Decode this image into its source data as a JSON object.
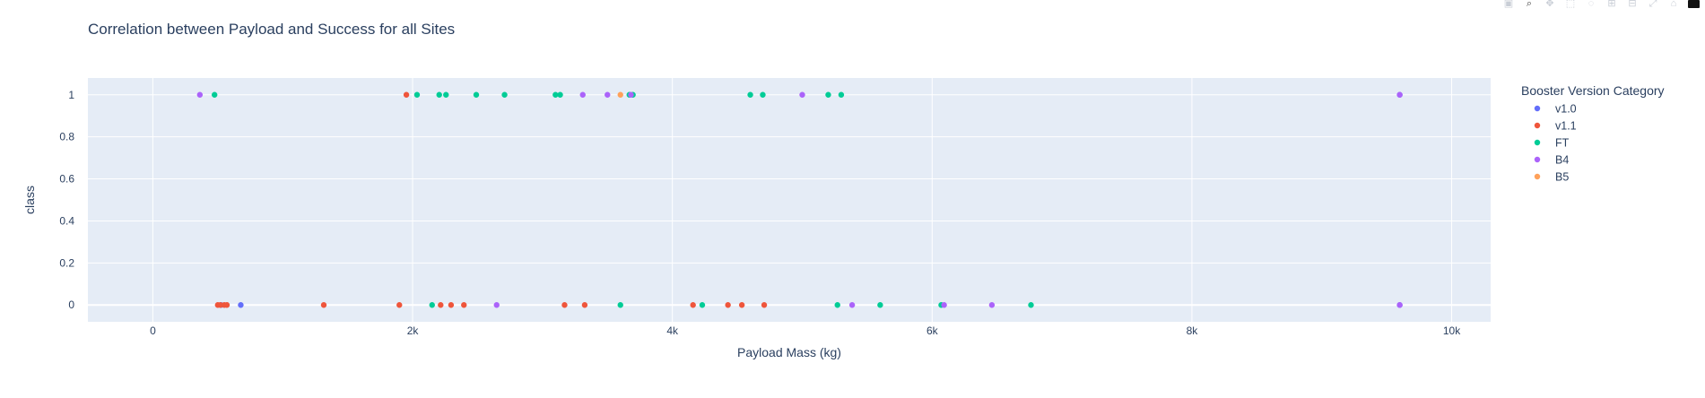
{
  "chart_data": {
    "type": "scatter",
    "title": "Correlation between Payload and Success for all Sites",
    "xlabel": "Payload Mass (kg)",
    "ylabel": "class",
    "xlim": [
      -500,
      10300
    ],
    "ylim": [
      -0.08,
      1.08
    ],
    "x_ticks": [
      0,
      2000,
      4000,
      6000,
      8000,
      10000
    ],
    "x_tick_labels": [
      "0",
      "2k",
      "4k",
      "6k",
      "8k",
      "10k"
    ],
    "y_ticks": [
      0,
      0.2,
      0.4,
      0.6,
      0.8,
      1
    ],
    "y_tick_labels": [
      "0",
      "0.2",
      "0.4",
      "0.6",
      "0.8",
      "1"
    ],
    "grid": true,
    "legend_title": "Booster Version Category",
    "legend_position": "right",
    "series": [
      {
        "name": "v1.0",
        "color": "#636efa",
        "points": [
          [
            525,
            0
          ],
          [
            677,
            0
          ],
          [
            9600,
            1
          ],
          [
            9600,
            0
          ]
        ]
      },
      {
        "name": "v1.1",
        "color": "#ef553b",
        "points": [
          [
            500,
            0
          ],
          [
            520,
            0
          ],
          [
            550,
            0
          ],
          [
            570,
            0
          ],
          [
            1316,
            0
          ],
          [
            1898,
            0
          ],
          [
            1952,
            1
          ],
          [
            2216,
            0
          ],
          [
            2296,
            0
          ],
          [
            2395,
            0
          ],
          [
            3170,
            0
          ],
          [
            3325,
            0
          ],
          [
            4159,
            0
          ],
          [
            4428,
            0
          ],
          [
            4535,
            0
          ],
          [
            4707,
            0
          ]
        ]
      },
      {
        "name": "FT",
        "color": "#00cc96",
        "points": [
          [
            475,
            1
          ],
          [
            2034,
            1
          ],
          [
            2150,
            0
          ],
          [
            2205,
            1
          ],
          [
            2257,
            1
          ],
          [
            2490,
            1
          ],
          [
            2708,
            1
          ],
          [
            3100,
            1
          ],
          [
            3136,
            1
          ],
          [
            3600,
            0
          ],
          [
            3669,
            1
          ],
          [
            3696,
            1
          ],
          [
            4230,
            0
          ],
          [
            4600,
            1
          ],
          [
            4696,
            1
          ],
          [
            5200,
            1
          ],
          [
            5271,
            0
          ],
          [
            5300,
            1
          ],
          [
            5600,
            0
          ],
          [
            6070,
            0
          ],
          [
            6761,
            0
          ]
        ]
      },
      {
        "name": "B4",
        "color": "#ab63fa",
        "points": [
          [
            362,
            1
          ],
          [
            2647,
            0
          ],
          [
            3310,
            1
          ],
          [
            3500,
            1
          ],
          [
            3681,
            1
          ],
          [
            5000,
            1
          ],
          [
            5384,
            0
          ],
          [
            6092,
            0
          ],
          [
            6460,
            0
          ],
          [
            9600,
            1
          ],
          [
            9600,
            0
          ]
        ]
      },
      {
        "name": "B5",
        "color": "#ffa15a",
        "points": [
          [
            3600,
            1
          ]
        ]
      }
    ]
  },
  "modebar": {
    "buttons": [
      "camera-icon",
      "zoom-icon",
      "pan-icon",
      "box-select-icon",
      "lasso-icon",
      "zoom-in-icon",
      "zoom-out-icon",
      "autoscale-icon",
      "home-icon",
      "plotly-logo-icon"
    ]
  }
}
